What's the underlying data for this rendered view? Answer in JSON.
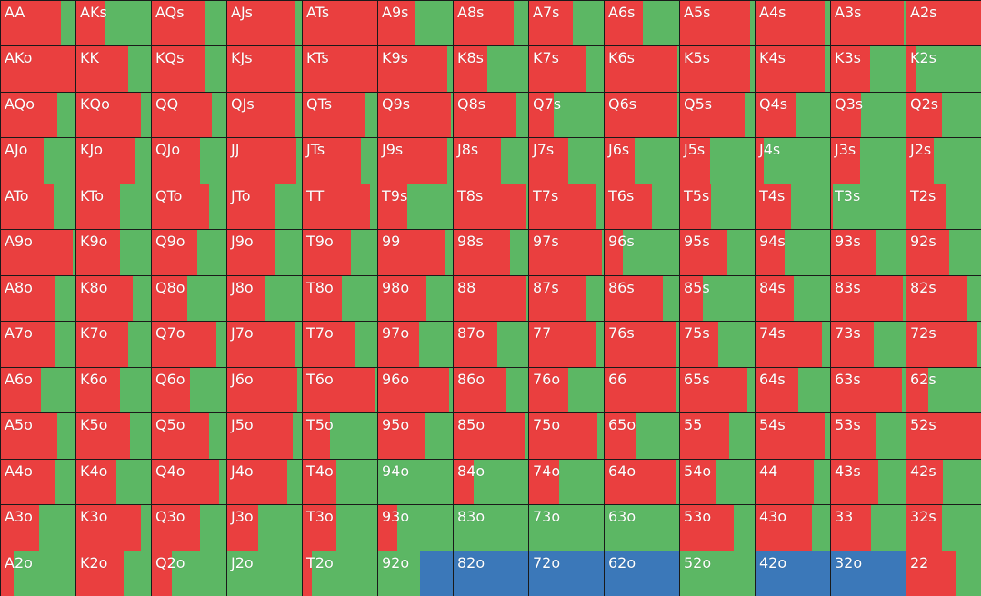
{
  "colors": {
    "red": "#ea3f3f",
    "green": "#5cb764",
    "blue": "#3b78b9",
    "border": "#1a1a1a"
  },
  "grid": {
    "rows": [
      [
        {
          "label": "AA",
          "red": 0.81
        },
        {
          "label": "AKs",
          "red": 0.39
        },
        {
          "label": "AQs",
          "red": 0.71
        },
        {
          "label": "AJs",
          "red": 0.92
        },
        {
          "label": "ATs",
          "red": 1
        },
        {
          "label": "A9s",
          "red": 0.5
        },
        {
          "label": "A8s",
          "red": 0.81
        },
        {
          "label": "A7s",
          "red": 0.59
        },
        {
          "label": "A6s",
          "red": 0.51
        },
        {
          "label": "A5s",
          "red": 0.94
        },
        {
          "label": "A4s",
          "red": 0.93
        },
        {
          "label": "A3s",
          "red": 0.97
        },
        {
          "label": "A2s",
          "red": 1
        }
      ],
      [
        {
          "label": "AKo",
          "red": 1
        },
        {
          "label": "KK",
          "red": 0.7
        },
        {
          "label": "KQs",
          "red": 0.71
        },
        {
          "label": "KJs",
          "red": 0.92
        },
        {
          "label": "KTs",
          "red": 1
        },
        {
          "label": "K9s",
          "red": 0.93
        },
        {
          "label": "K8s",
          "red": 0.45
        },
        {
          "label": "K7s",
          "red": 0.76
        },
        {
          "label": "K6s",
          "red": 0.97
        },
        {
          "label": "K5s",
          "red": 0.94
        },
        {
          "label": "K4s",
          "red": 0.93
        },
        {
          "label": "K3s",
          "red": 0.52
        },
        {
          "label": "K2s",
          "red": 0.13
        }
      ],
      [
        {
          "label": "AQo",
          "red": 0.75
        },
        {
          "label": "KQo",
          "red": 0.86
        },
        {
          "label": "QQ",
          "red": 0.81
        },
        {
          "label": "QJs",
          "red": 0.92
        },
        {
          "label": "QTs",
          "red": 0.83
        },
        {
          "label": "Q9s",
          "red": 0.97
        },
        {
          "label": "Q8s",
          "red": 0.84
        },
        {
          "label": "Q7s",
          "red": 0.33
        },
        {
          "label": "Q6s",
          "red": 0.98
        },
        {
          "label": "Q5s",
          "red": 0.86
        },
        {
          "label": "Q4s",
          "red": 0.54
        },
        {
          "label": "Q3s",
          "red": 0.4
        },
        {
          "label": "Q2s",
          "red": 0.47
        }
      ],
      [
        {
          "label": "AJo",
          "red": 0.57
        },
        {
          "label": "KJo",
          "red": 0.78
        },
        {
          "label": "QJo",
          "red": 0.65
        },
        {
          "label": "JJ",
          "red": 0.93
        },
        {
          "label": "JTs",
          "red": 0.78
        },
        {
          "label": "J9s",
          "red": 0.93
        },
        {
          "label": "J8s",
          "red": 0.63
        },
        {
          "label": "J7s",
          "red": 0.53
        },
        {
          "label": "J6s",
          "red": 0.4
        },
        {
          "label": "J5s",
          "red": 0.4
        },
        {
          "label": "J4s",
          "red": 0.11
        },
        {
          "label": "J3s",
          "red": 0.39
        },
        {
          "label": "J2s",
          "red": 0.36
        }
      ],
      [
        {
          "label": "ATo",
          "red": 0.71
        },
        {
          "label": "KTo",
          "red": 0.59
        },
        {
          "label": "QTo",
          "red": 0.77
        },
        {
          "label": "JTo",
          "red": 0.63
        },
        {
          "label": "TT",
          "red": 0.9
        },
        {
          "label": "T9s",
          "red": 0.39
        },
        {
          "label": "T8s",
          "red": 0.98
        },
        {
          "label": "T7s",
          "red": 0.9
        },
        {
          "label": "T6s",
          "red": 0.63
        },
        {
          "label": "T5s",
          "red": 0.42
        },
        {
          "label": "T4s",
          "red": 0.48
        },
        {
          "label": "T3s",
          "red": 0.03
        },
        {
          "label": "T2s",
          "red": 0.52
        }
      ],
      [
        {
          "label": "A9o",
          "red": 0.96
        },
        {
          "label": "K9o",
          "red": 0.59
        },
        {
          "label": "Q9o",
          "red": 0.61
        },
        {
          "label": "J9o",
          "red": 0.63
        },
        {
          "label": "T9o",
          "red": 0.65
        },
        {
          "label": "99",
          "red": 0.9
        },
        {
          "label": "98s",
          "red": 0.75
        },
        {
          "label": "97s",
          "red": 0.98
        },
        {
          "label": "96s",
          "red": 0.24
        },
        {
          "label": "95s",
          "red": 0.64
        },
        {
          "label": "94s",
          "red": 0.39
        },
        {
          "label": "93s",
          "red": 0.61
        },
        {
          "label": "92s",
          "red": 0.57
        }
      ],
      [
        {
          "label": "A8o",
          "red": 0.73
        },
        {
          "label": "K8o",
          "red": 0.75
        },
        {
          "label": "Q8o",
          "red": 0.48
        },
        {
          "label": "J8o",
          "red": 0.51
        },
        {
          "label": "T8o",
          "red": 0.52
        },
        {
          "label": "98o",
          "red": 0.65
        },
        {
          "label": "88",
          "red": 0.96
        },
        {
          "label": "87s",
          "red": 0.75
        },
        {
          "label": "86s",
          "red": 0.78
        },
        {
          "label": "85s",
          "red": 0.31
        },
        {
          "label": "84s",
          "red": 0.51
        },
        {
          "label": "83s",
          "red": 0.96
        },
        {
          "label": "82s",
          "red": 0.82
        }
      ],
      [
        {
          "label": "A7o",
          "red": 0.73
        },
        {
          "label": "K7o",
          "red": 0.69
        },
        {
          "label": "Q7o",
          "red": 0.86
        },
        {
          "label": "J7o",
          "red": 0.9
        },
        {
          "label": "T7o",
          "red": 0.71
        },
        {
          "label": "97o",
          "red": 0.55
        },
        {
          "label": "87o",
          "red": 0.59
        },
        {
          "label": "77",
          "red": 0.9
        },
        {
          "label": "76s",
          "red": 0.96
        },
        {
          "label": "75s",
          "red": 0.51
        },
        {
          "label": "74s",
          "red": 0.89
        },
        {
          "label": "73s",
          "red": 0.57
        },
        {
          "label": "72s",
          "red": 0.95
        }
      ],
      [
        {
          "label": "A6o",
          "red": 0.54
        },
        {
          "label": "K6o",
          "red": 0.58
        },
        {
          "label": "Q6o",
          "red": 0.51
        },
        {
          "label": "J6o",
          "red": 0.94
        },
        {
          "label": "T6o",
          "red": 0.96
        },
        {
          "label": "96o",
          "red": 0.95
        },
        {
          "label": "86o",
          "red": 0.7
        },
        {
          "label": "76o",
          "red": 0.53
        },
        {
          "label": "66",
          "red": 0.95
        },
        {
          "label": "65s",
          "red": 0.9
        },
        {
          "label": "64s",
          "red": 0.57
        },
        {
          "label": "63s",
          "red": 0.95
        },
        {
          "label": "62s",
          "red": 0.29
        }
      ],
      [
        {
          "label": "A5o",
          "red": 0.76
        },
        {
          "label": "K5o",
          "red": 0.72
        },
        {
          "label": "Q5o",
          "red": 0.77
        },
        {
          "label": "J5o",
          "red": 0.88
        },
        {
          "label": "T5o",
          "red": 0.36
        },
        {
          "label": "95o",
          "red": 0.64
        },
        {
          "label": "85o",
          "red": 0.95
        },
        {
          "label": "75o",
          "red": 0.92
        },
        {
          "label": "65o",
          "red": 0.41
        },
        {
          "label": "55",
          "red": 0.66
        },
        {
          "label": "54s",
          "red": 0.93
        },
        {
          "label": "53s",
          "red": 0.6
        },
        {
          "label": "52s",
          "red": 1
        }
      ],
      [
        {
          "label": "A4o",
          "red": 0.73
        },
        {
          "label": "K4o",
          "red": 0.54
        },
        {
          "label": "Q4o",
          "red": 0.9
        },
        {
          "label": "J4o",
          "red": 0.8
        },
        {
          "label": "T4o",
          "red": 0.45
        },
        {
          "label": "94o",
          "red": 0
        },
        {
          "label": "84o",
          "red": 0.27
        },
        {
          "label": "74o",
          "red": 0.4
        },
        {
          "label": "64o",
          "red": 0.96
        },
        {
          "label": "54o",
          "red": 0.49
        },
        {
          "label": "44",
          "red": 0.78
        },
        {
          "label": "43s",
          "red": 0.63
        },
        {
          "label": "42s",
          "red": 0.49
        }
      ],
      [
        {
          "label": "A3o",
          "red": 0.51
        },
        {
          "label": "K3o",
          "red": 0.86
        },
        {
          "label": "Q3o",
          "red": 0.65
        },
        {
          "label": "J3o",
          "red": 0.41
        },
        {
          "label": "T3o",
          "red": 0.45
        },
        {
          "label": "93o",
          "red": 0.25
        },
        {
          "label": "83o",
          "red": 0
        },
        {
          "label": "73o",
          "red": 0
        },
        {
          "label": "63o",
          "red": 0
        },
        {
          "label": "53o",
          "red": 0.72
        },
        {
          "label": "43o",
          "red": 0.75
        },
        {
          "label": "33",
          "red": 0.54
        },
        {
          "label": "32s",
          "red": 0.48
        }
      ],
      [
        {
          "label": "A2o",
          "red": 0.17
        },
        {
          "label": "K2o",
          "red": 0.64
        },
        {
          "label": "Q2o",
          "red": 0.27
        },
        {
          "label": "J2o",
          "red": 0
        },
        {
          "label": "T2o",
          "red": 0.12
        },
        {
          "label": "92o",
          "red": 0,
          "blue": 0.44
        },
        {
          "label": "82o",
          "red": 0,
          "blue": 1
        },
        {
          "label": "72o",
          "red": 0,
          "blue": 1
        },
        {
          "label": "62o",
          "red": 0,
          "blue": 1
        },
        {
          "label": "52o",
          "red": 0
        },
        {
          "label": "42o",
          "red": 0,
          "blue": 1
        },
        {
          "label": "32o",
          "red": 0,
          "blue": 1
        },
        {
          "label": "22",
          "red": 0.66
        }
      ]
    ]
  }
}
